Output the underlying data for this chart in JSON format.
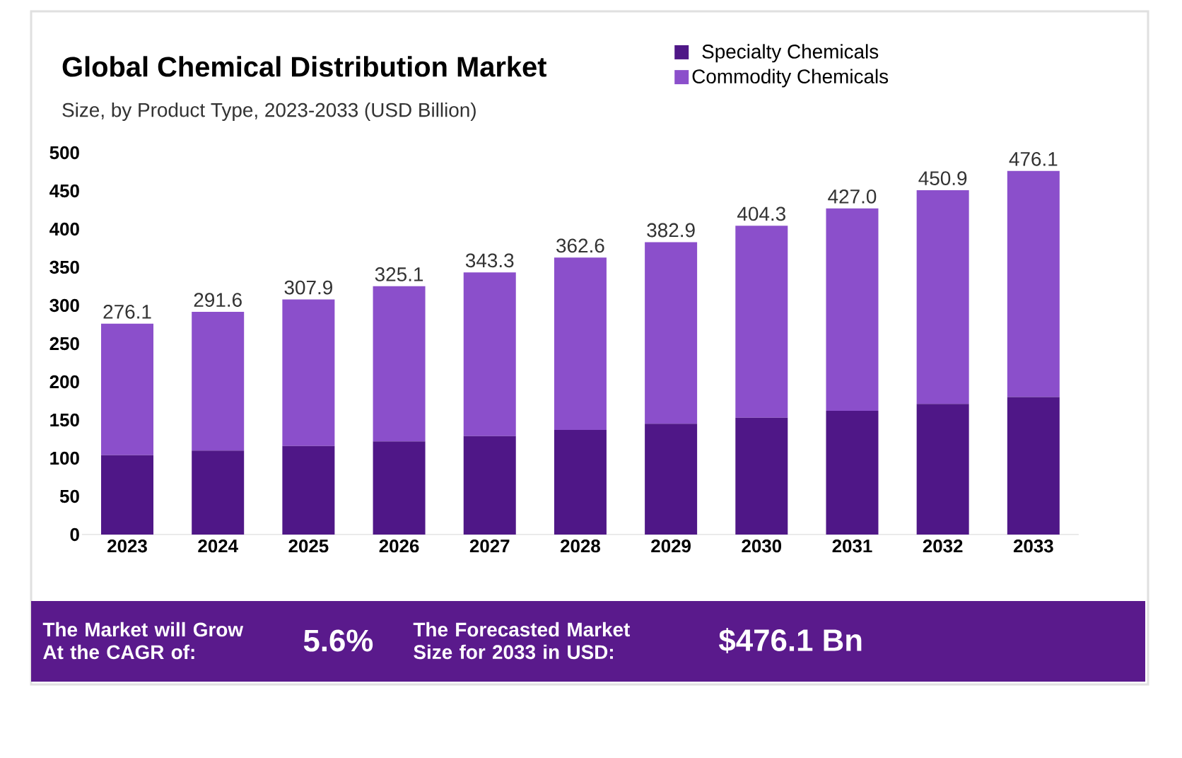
{
  "chart_data": {
    "type": "bar",
    "title": "Global Chemical Distribution Market",
    "subtitle": "Size, by Product Type, 2023-2033 (USD Billion)",
    "categories": [
      "2023",
      "2024",
      "2025",
      "2026",
      "2027",
      "2028",
      "2029",
      "2030",
      "2031",
      "2032",
      "2033"
    ],
    "series": [
      {
        "name": "Specialty Chemicals",
        "color": "#4f1787",
        "values": [
          104,
          110,
          116,
          122,
          129,
          137,
          145,
          153,
          162,
          171,
          180
        ]
      },
      {
        "name": "Commodity Chemicals",
        "color": "#8b4fcb",
        "values": [
          172.1,
          181.6,
          191.9,
          203.1,
          214.3,
          225.6,
          237.9,
          251.3,
          265.0,
          279.9,
          296.1
        ]
      }
    ],
    "stacked": true,
    "ylim": [
      0,
      500
    ],
    "yticks": [
      0,
      50,
      100,
      150,
      200,
      250,
      300,
      350,
      400,
      450,
      500
    ],
    "totals": [
      "276.1",
      "291.6",
      "307.9",
      "325.1",
      "343.3",
      "362.6",
      "382.9",
      "404.3",
      "427.0",
      "450.9",
      "476.1"
    ],
    "legend": "top right",
    "annotations": [
      "The Market will Grow At the CAGR of:",
      "5.6%",
      "The Forecasted Market Size for 2033 in USD:",
      "$476.1 Bn"
    ]
  }
}
